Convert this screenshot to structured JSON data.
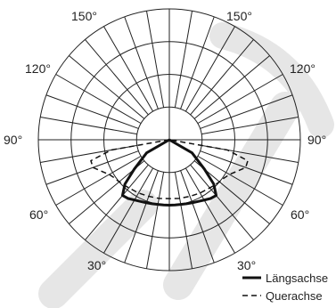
{
  "chart_data": {
    "type": "polar-line",
    "title": "",
    "angle_labels": [
      "150°",
      "150°",
      "120°",
      "120°",
      "90°",
      "90°",
      "60°",
      "60°",
      "30°",
      "30°"
    ],
    "angle_grid_deg": [
      0,
      10,
      20,
      30,
      40,
      50,
      60,
      70,
      80,
      90,
      100,
      110,
      120,
      130,
      140,
      150,
      160,
      170,
      180
    ],
    "ring_fractions": [
      0.25,
      0.5,
      0.75,
      1.0
    ],
    "grid": true,
    "legend": {
      "placement": "bottom-right",
      "entries": [
        "Längsachse",
        "Querachse"
      ]
    },
    "series": [
      {
        "name": "Längsachse",
        "style": "solid",
        "color": "#111111",
        "theta_deg": [
          -90,
          -60,
          -50,
          -45,
          -40,
          -35,
          -30,
          -25,
          -20,
          -15,
          -10,
          -5,
          0,
          5,
          10,
          15,
          20,
          25,
          30,
          35,
          40,
          45,
          50,
          60,
          90
        ],
        "r": [
          0,
          0.2,
          0.35,
          0.48,
          0.556,
          0.548,
          0.532,
          0.52,
          0.512,
          0.506,
          0.502,
          0.5,
          0.5,
          0.5,
          0.502,
          0.506,
          0.512,
          0.52,
          0.532,
          0.548,
          0.556,
          0.48,
          0.35,
          0.2,
          0
        ]
      },
      {
        "name": "Querachse",
        "style": "dashed",
        "color": "#111111",
        "theta_deg": [
          -90,
          -80,
          -75,
          -70,
          -65,
          -60,
          -55,
          -50,
          -45,
          -40,
          -30,
          -20,
          -10,
          0,
          10,
          20,
          30,
          40,
          45,
          50,
          55,
          60,
          65,
          70,
          75,
          80,
          90
        ],
        "r": [
          0,
          0.45,
          0.62,
          0.62,
          0.57,
          0.53,
          0.51,
          0.5,
          0.49,
          0.48,
          0.47,
          0.46,
          0.455,
          0.45,
          0.455,
          0.46,
          0.47,
          0.48,
          0.49,
          0.5,
          0.51,
          0.53,
          0.57,
          0.62,
          0.62,
          0.45,
          0
        ]
      }
    ]
  }
}
